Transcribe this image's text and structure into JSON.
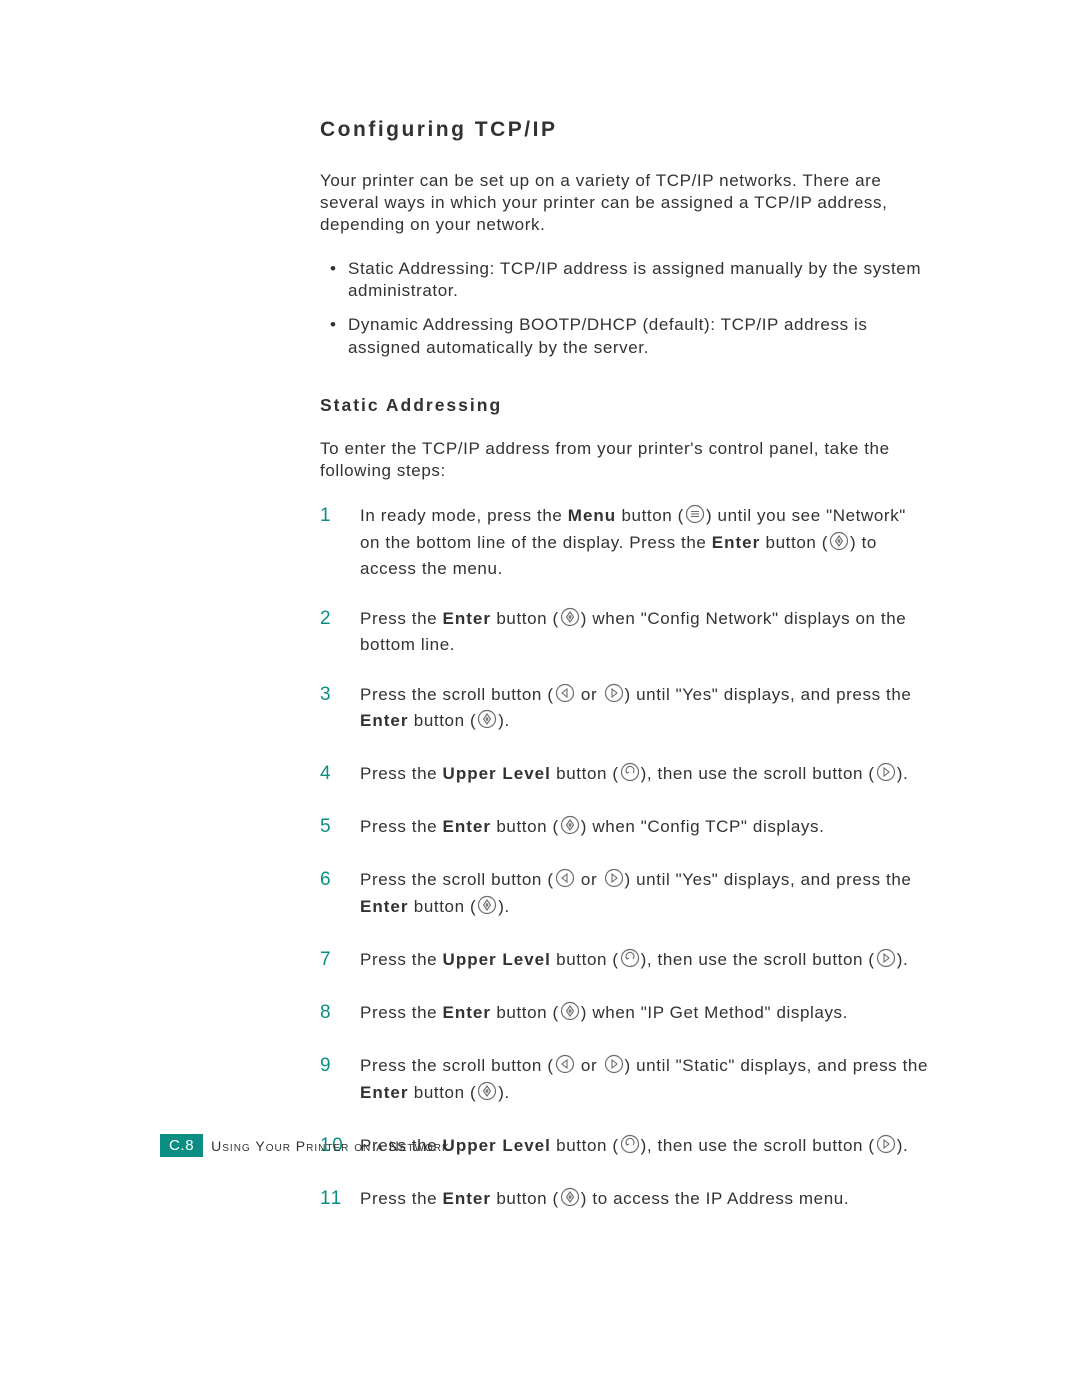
{
  "colors": {
    "accent": "#0a8e83",
    "text": "#323232",
    "bg": "#ffffff",
    "icon_stroke": "#6b6b6b",
    "icon_fill": "#ffffff"
  },
  "heading": "Configuring TCP/IP",
  "intro": "Your printer can be set up on a variety of TCP/IP networks. There are several ways in which your printer can be assigned a TCP/IP address, depending on your network.",
  "bullets": [
    "Static Addressing: TCP/IP address is assigned manually by the system administrator.",
    "Dynamic Addressing BOOTP/DHCP (default): TCP/IP address is assigned automatically by the server."
  ],
  "subheading": "Static Addressing",
  "subintro": "To enter the TCP/IP address from your printer's control panel, take the following steps:",
  "icons": {
    "menu": "menu-icon",
    "enter": "enter-icon",
    "left": "scroll-left-icon",
    "right": "scroll-right-icon",
    "upper": "upper-level-icon"
  },
  "labels": {
    "menu": "Menu",
    "enter": "Enter",
    "upper_level": "Upper Level"
  },
  "steps": [
    {
      "n": "1",
      "segments": [
        {
          "t": "text",
          "v": "In ready mode, press the "
        },
        {
          "t": "bold",
          "v": "Menu"
        },
        {
          "t": "text",
          "v": " button ("
        },
        {
          "t": "icon",
          "v": "menu"
        },
        {
          "t": "text",
          "v": ") until you see \"Network\" on the bottom line of the display. Press the "
        },
        {
          "t": "bold",
          "v": "Enter"
        },
        {
          "t": "text",
          "v": " button ("
        },
        {
          "t": "icon",
          "v": "enter"
        },
        {
          "t": "text",
          "v": ") to access the menu."
        }
      ]
    },
    {
      "n": "2",
      "segments": [
        {
          "t": "text",
          "v": "Press the "
        },
        {
          "t": "bold",
          "v": "Enter"
        },
        {
          "t": "text",
          "v": " button ("
        },
        {
          "t": "icon",
          "v": "enter"
        },
        {
          "t": "text",
          "v": ") when \"Config Network\" displays on the bottom line."
        }
      ]
    },
    {
      "n": "3",
      "segments": [
        {
          "t": "text",
          "v": "Press the scroll button ("
        },
        {
          "t": "icon",
          "v": "left"
        },
        {
          "t": "text",
          "v": " or "
        },
        {
          "t": "icon",
          "v": "right"
        },
        {
          "t": "text",
          "v": ") until \"Yes\" displays, and press the "
        },
        {
          "t": "bold",
          "v": "Enter"
        },
        {
          "t": "text",
          "v": " button ("
        },
        {
          "t": "icon",
          "v": "enter"
        },
        {
          "t": "text",
          "v": ")."
        }
      ]
    },
    {
      "n": "4",
      "segments": [
        {
          "t": "text",
          "v": "Press the "
        },
        {
          "t": "bold",
          "v": "Upper Level"
        },
        {
          "t": "text",
          "v": " button ("
        },
        {
          "t": "icon",
          "v": "upper"
        },
        {
          "t": "text",
          "v": "), then use the scroll button ("
        },
        {
          "t": "icon",
          "v": "right"
        },
        {
          "t": "text",
          "v": ")."
        }
      ]
    },
    {
      "n": "5",
      "segments": [
        {
          "t": "text",
          "v": "Press the "
        },
        {
          "t": "bold",
          "v": "Enter"
        },
        {
          "t": "text",
          "v": " button ("
        },
        {
          "t": "icon",
          "v": "enter"
        },
        {
          "t": "text",
          "v": ") when \"Config TCP\" displays."
        }
      ]
    },
    {
      "n": "6",
      "segments": [
        {
          "t": "text",
          "v": "Press the scroll button ("
        },
        {
          "t": "icon",
          "v": "left"
        },
        {
          "t": "text",
          "v": " or "
        },
        {
          "t": "icon",
          "v": "right"
        },
        {
          "t": "text",
          "v": ") until \"Yes\" displays, and press the "
        },
        {
          "t": "bold",
          "v": "Enter"
        },
        {
          "t": "text",
          "v": " button ("
        },
        {
          "t": "icon",
          "v": "enter"
        },
        {
          "t": "text",
          "v": ")."
        }
      ]
    },
    {
      "n": "7",
      "segments": [
        {
          "t": "text",
          "v": "Press the "
        },
        {
          "t": "bold",
          "v": "Upper Level"
        },
        {
          "t": "text",
          "v": " button ("
        },
        {
          "t": "icon",
          "v": "upper"
        },
        {
          "t": "text",
          "v": "), then use the scroll button ("
        },
        {
          "t": "icon",
          "v": "right"
        },
        {
          "t": "text",
          "v": ")."
        }
      ]
    },
    {
      "n": "8",
      "segments": [
        {
          "t": "text",
          "v": "Press the "
        },
        {
          "t": "bold",
          "v": "Enter"
        },
        {
          "t": "text",
          "v": " button ("
        },
        {
          "t": "icon",
          "v": "enter"
        },
        {
          "t": "text",
          "v": ") when \"IP Get Method\" displays."
        }
      ]
    },
    {
      "n": "9",
      "segments": [
        {
          "t": "text",
          "v": "Press the scroll button ("
        },
        {
          "t": "icon",
          "v": "left"
        },
        {
          "t": "text",
          "v": " or "
        },
        {
          "t": "icon",
          "v": "right"
        },
        {
          "t": "text",
          "v": ") until \"Static\" displays, and press the "
        },
        {
          "t": "bold",
          "v": "Enter"
        },
        {
          "t": "text",
          "v": " button ("
        },
        {
          "t": "icon",
          "v": "enter"
        },
        {
          "t": "text",
          "v": ")."
        }
      ]
    },
    {
      "n": "10",
      "segments": [
        {
          "t": "text",
          "v": "Press the "
        },
        {
          "t": "bold",
          "v": "Upper Level"
        },
        {
          "t": "text",
          "v": " button ("
        },
        {
          "t": "icon",
          "v": "upper"
        },
        {
          "t": "text",
          "v": "), then use the scroll button ("
        },
        {
          "t": "icon",
          "v": "right"
        },
        {
          "t": "text",
          "v": ")."
        }
      ]
    },
    {
      "n": "11",
      "segments": [
        {
          "t": "text",
          "v": "Press the "
        },
        {
          "t": "bold",
          "v": "Enter"
        },
        {
          "t": "text",
          "v": " button ("
        },
        {
          "t": "icon",
          "v": "enter"
        },
        {
          "t": "text",
          "v": ") to access the IP Address menu."
        }
      ]
    }
  ],
  "footer": {
    "badge": "C.8",
    "text": "Using Your Printer on a Network"
  }
}
